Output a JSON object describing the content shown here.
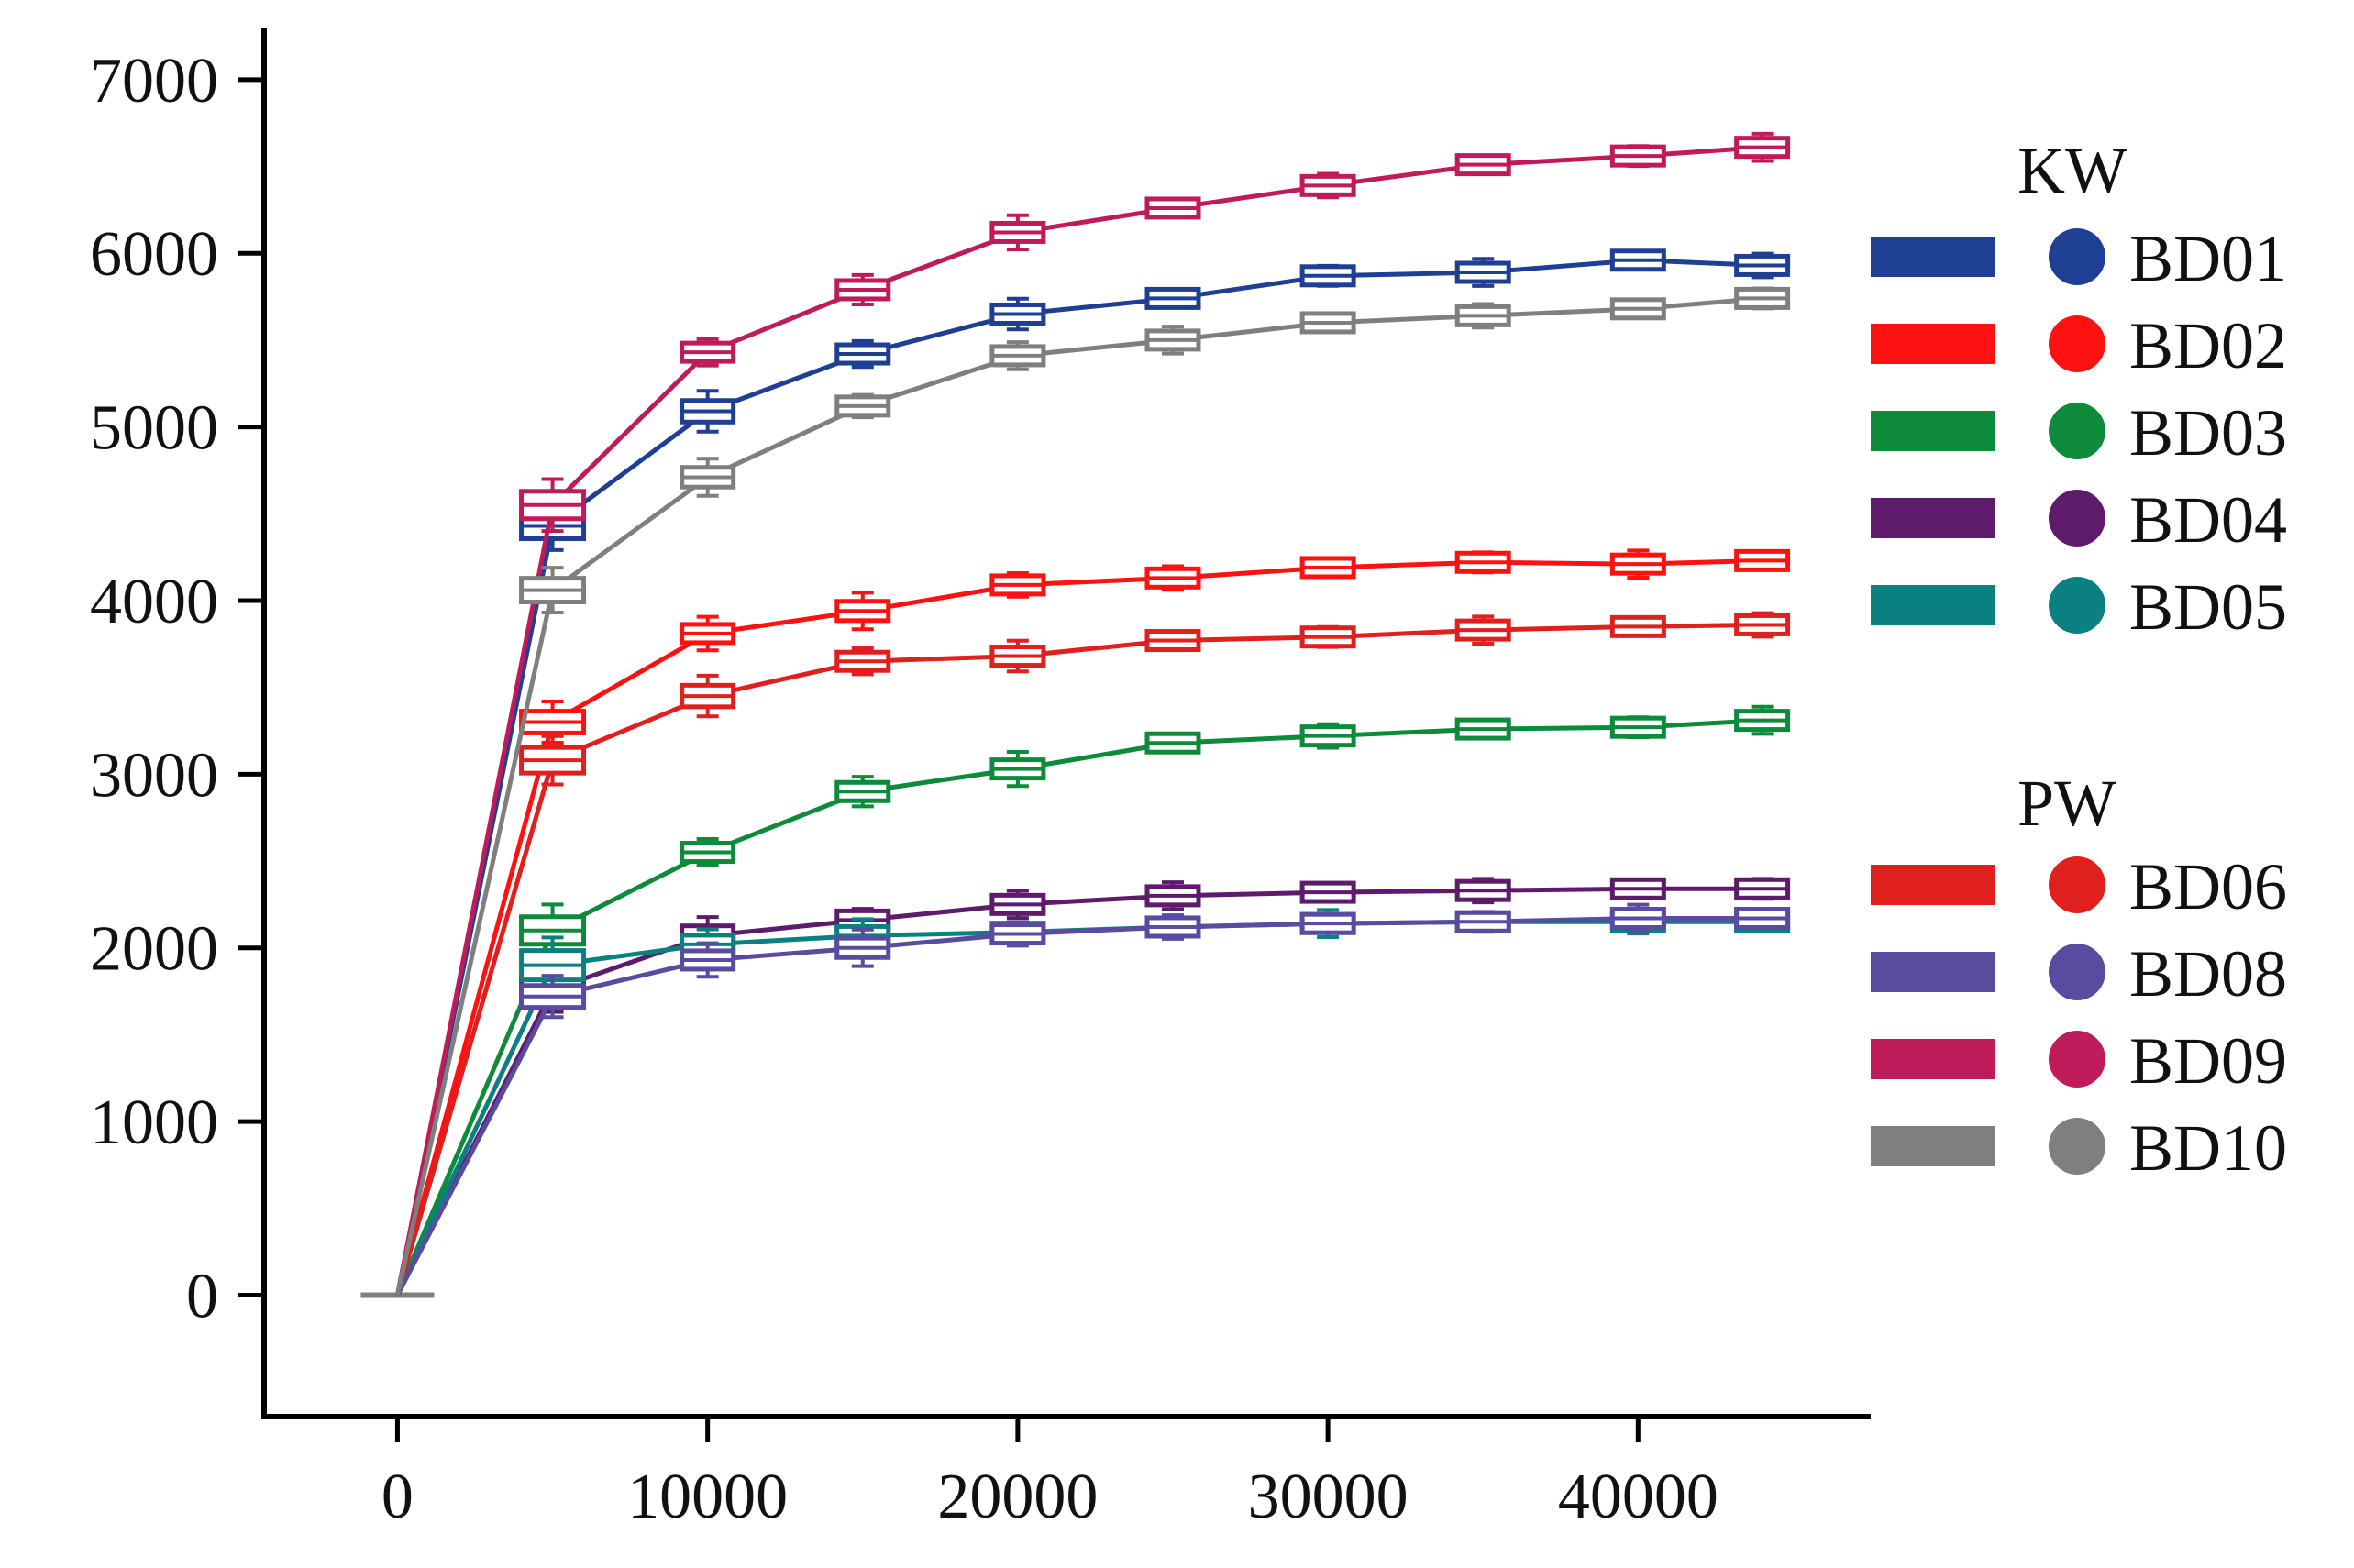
{
  "chart_data": {
    "type": "line",
    "title": "",
    "xlabel": "",
    "ylabel": "",
    "xlim": [
      -4300,
      47500
    ],
    "ylim": [
      -700,
      7300
    ],
    "xticks": [
      0,
      10000,
      20000,
      30000,
      40000
    ],
    "xtick_labels": [
      "0",
      "10000",
      "20000",
      "30000",
      "40000"
    ],
    "yticks": [
      0,
      1000,
      2000,
      3000,
      4000,
      5000,
      6000,
      7000
    ],
    "ytick_labels": [
      "0",
      "1000",
      "2000",
      "3000",
      "4000",
      "5000",
      "6000",
      "7000"
    ],
    "grid": false,
    "legend_position": "right",
    "x": [
      0,
      5000,
      10000,
      15000,
      20000,
      25000,
      30000,
      35000,
      40000,
      44000
    ],
    "series": [
      {
        "name": "BD01",
        "group": "KW",
        "color": "#1f3f94",
        "values": [
          0,
          4430,
          5090,
          5420,
          5650,
          5740,
          5870,
          5890,
          5960,
          5930
        ]
      },
      {
        "name": "BD02",
        "group": "KW",
        "color": "#ff1111",
        "values": [
          0,
          3300,
          3810,
          3940,
          4090,
          4130,
          4190,
          4220,
          4210,
          4230
        ]
      },
      {
        "name": "BD03",
        "group": "KW",
        "color": "#0d8a3a",
        "values": [
          0,
          2100,
          2550,
          2900,
          3030,
          3180,
          3220,
          3260,
          3270,
          3310
        ]
      },
      {
        "name": "BD04",
        "group": "KW",
        "color": "#5e1a6b",
        "values": [
          0,
          1760,
          2070,
          2160,
          2250,
          2300,
          2320,
          2330,
          2340,
          2340
        ]
      },
      {
        "name": "BD05",
        "group": "KW",
        "color": "#0a8080",
        "values": [
          0,
          1900,
          2020,
          2070,
          2090,
          2120,
          2140,
          2150,
          2150,
          2150
        ]
      },
      {
        "name": "BD06",
        "group": "PW",
        "color": "#e01f1f",
        "values": [
          0,
          3080,
          3450,
          3650,
          3680,
          3770,
          3790,
          3830,
          3850,
          3860
        ]
      },
      {
        "name": "BD08",
        "group": "PW",
        "color": "#5a4aa0",
        "values": [
          0,
          1720,
          1930,
          2000,
          2080,
          2120,
          2140,
          2150,
          2170,
          2170
        ]
      },
      {
        "name": "BD09",
        "group": "PW",
        "color": "#bf1a5a",
        "values": [
          0,
          4550,
          5430,
          5790,
          6120,
          6260,
          6390,
          6510,
          6560,
          6610
        ]
      },
      {
        "name": "BD10",
        "group": "PW",
        "color": "#7f7f7f",
        "values": [
          0,
          4060,
          4710,
          5120,
          5410,
          5500,
          5600,
          5640,
          5680,
          5740
        ]
      }
    ],
    "legend": {
      "groups": [
        {
          "title": "KW",
          "items": [
            "BD01",
            "BD02",
            "BD03",
            "BD04",
            "BD05"
          ]
        },
        {
          "title": "PW",
          "items": [
            "BD06",
            "BD08",
            "BD09",
            "BD10"
          ]
        }
      ]
    }
  }
}
